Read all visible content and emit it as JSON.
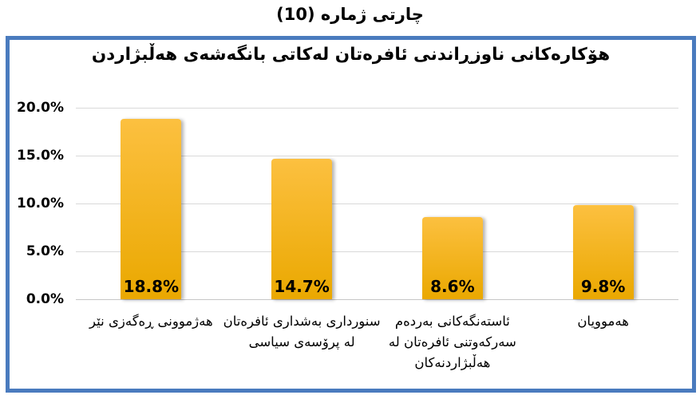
{
  "page_title": "چارتی ژماره (10)",
  "chart_data": {
    "type": "bar",
    "title": "هۆکارەکانی ناوزڕاندنی ئافرەتان لەکاتی بانگەشەی هەڵبژاردن",
    "direction": "rtl",
    "categories": [
      "هەژموونی ڕەگەزی نێر",
      "سنورداری بەشداری ئافرەتان لە پرۆسەی سیاسی",
      "ئاستەنگەکانی بەردەم سەرکەوتنی ئافرەتان لە هەڵبژاردنەکان",
      "هەموویان"
    ],
    "values": [
      18.8,
      14.7,
      8.6,
      9.8
    ],
    "data_labels": [
      "18.8%",
      "14.7%",
      "8.6%",
      "9.8%"
    ],
    "ylim": [
      0,
      20
    ],
    "yticks": [
      {
        "value": 0,
        "label": "0.0%"
      },
      {
        "value": 5,
        "label": "5.0%"
      },
      {
        "value": 10,
        "label": "10.0%"
      },
      {
        "value": 15,
        "label": "15.0%"
      },
      {
        "value": 20,
        "label": "20.0%"
      }
    ],
    "grid": true,
    "legend": false,
    "xlabel": "",
    "ylabel": "",
    "colors": {
      "frame_border": "#4A7BBE",
      "bar_top": "#FCC040",
      "bar_bottom": "#EAA800",
      "gridline": "#D9D9D9",
      "axis_line": "#C6C6C6",
      "text": "#000000"
    }
  }
}
